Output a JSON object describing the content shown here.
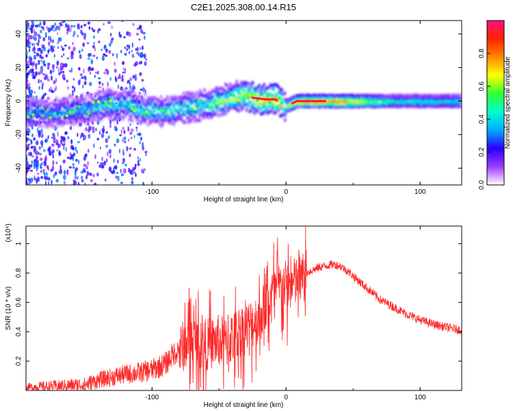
{
  "title": "C2E1.2025.308.00.14.R15",
  "chart_data": [
    {
      "type": "heatmap",
      "panel": "top",
      "xlabel": "Height of straight line (km)",
      "ylabel": "Frequency (Hz)",
      "xlim": [
        -194,
        131
      ],
      "ylim": [
        -50,
        48
      ],
      "xticks": [
        "-100",
        "0",
        "100"
      ],
      "yticks": [
        "40",
        "20",
        "0",
        "-20",
        "-40"
      ],
      "colorbar": {
        "label": "Normalized spectral amplitude",
        "range": [
          0,
          1
        ],
        "ticks": [
          "0.0",
          "0.2",
          "0.4",
          "0.6",
          "0.8"
        ],
        "colors": [
          "#ffffff",
          "#9b3cff",
          "#2a00ff",
          "#00aaff",
          "#00ffcc",
          "#33ff33",
          "#ffff00",
          "#ff8800",
          "#ff2200",
          "#ff1177"
        ]
      },
      "frequency_track": {
        "x": [
          -194,
          -175,
          -150,
          -135,
          -120,
          -105,
          -90,
          -75,
          -60,
          -50,
          -40,
          -32,
          -25,
          -15,
          -8,
          -3,
          0,
          3,
          8,
          20,
          40,
          80,
          131
        ],
        "center": [
          -7,
          -7,
          -5,
          -2,
          -2,
          -5,
          -6,
          -4,
          -2,
          0,
          2,
          4,
          2,
          1,
          1,
          -1,
          -3,
          -2,
          0,
          0,
          0,
          0,
          0
        ],
        "amplitude": [
          0.35,
          0.35,
          0.4,
          0.45,
          0.45,
          0.45,
          0.45,
          0.45,
          0.5,
          0.55,
          0.6,
          0.65,
          0.8,
          0.9,
          0.9,
          0.7,
          0.6,
          0.8,
          0.9,
          0.95,
          0.9,
          0.5,
          0.45
        ]
      }
    },
    {
      "type": "line",
      "panel": "bottom",
      "xlabel": "Height of straight line (km)",
      "ylabel": "SNR (10 * v/v)",
      "yscale_label": "(x10⁴)",
      "xlim": [
        -194,
        131
      ],
      "ylim": [
        0,
        1.12
      ],
      "xticks": [
        "-100",
        "0",
        "100"
      ],
      "yticks": [
        "0.2",
        "0.4",
        "0.6",
        "0.8",
        "1"
      ],
      "series": [
        {
          "name": "SNR",
          "color": "#ff2a2a",
          "x": [
            -194,
            -170,
            -150,
            -140,
            -130,
            -120,
            -110,
            -100,
            -90,
            -85,
            -80,
            -75,
            -70,
            -65,
            -60,
            -55,
            -50,
            -45,
            -40,
            -35,
            -30,
            -25,
            -20,
            -15,
            -10,
            -5,
            0,
            5,
            10,
            15,
            20,
            25,
            30,
            35,
            40,
            45,
            50,
            55,
            60,
            65,
            70,
            80,
            90,
            100,
            110,
            120,
            131
          ],
          "values": [
            0.02,
            0.03,
            0.04,
            0.07,
            0.09,
            0.11,
            0.12,
            0.14,
            0.18,
            0.24,
            0.28,
            0.34,
            0.36,
            0.34,
            0.33,
            0.34,
            0.36,
            0.34,
            0.38,
            0.42,
            0.44,
            0.48,
            0.52,
            0.6,
            0.68,
            0.72,
            0.73,
            0.74,
            0.77,
            0.8,
            0.82,
            0.84,
            0.85,
            0.86,
            0.85,
            0.82,
            0.78,
            0.74,
            0.7,
            0.66,
            0.62,
            0.57,
            0.52,
            0.48,
            0.45,
            0.43,
            0.41
          ]
        }
      ]
    }
  ]
}
